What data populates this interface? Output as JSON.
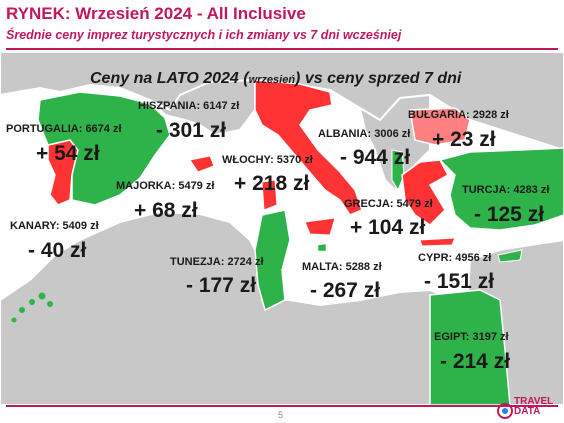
{
  "header": {
    "title": "RYNEK: Wrzesień 2024 - All Inclusive",
    "subtitle": "Średnie ceny imprez turystycznych i ich zmiany vs 7 dni wcześniej"
  },
  "map": {
    "heading_part1": "Ceny na LATO 2024 (",
    "heading_small": "wrzesień",
    "heading_part2": ") vs ceny sprzed 7 dni",
    "colors": {
      "increase": "#ff3333",
      "decrease": "#2db34a",
      "land": "#c8c8c8",
      "sea": "#ffffff"
    },
    "destinations": [
      {
        "id": "portugalia",
        "label": "PORTUGALIA: 6674 zł",
        "change": "+ 54 zł"
      },
      {
        "id": "hiszpania",
        "label": "HISZPANIA: 6147 zł",
        "change": "- 301 zł"
      },
      {
        "id": "majorka",
        "label": "MAJORKA: 5479 zł",
        "change": "+ 68 zł"
      },
      {
        "id": "kanary",
        "label": "KANARY: 5409 zł",
        "change": "- 40 zł"
      },
      {
        "id": "wlochy",
        "label": "WŁOCHY: 5370 zł",
        "change": "+ 218 zł"
      },
      {
        "id": "albania",
        "label": "ALBANIA: 3006 zł",
        "change": "- 944 zł"
      },
      {
        "id": "bulgaria",
        "label": "BUŁGARIA: 2928 zł",
        "change": "+ 23 zł"
      },
      {
        "id": "turcja",
        "label": "TURCJA: 4283 zł",
        "change": "- 125 zł"
      },
      {
        "id": "grecja",
        "label": "GRECJA: 5479 zł",
        "change": "+ 104 zł"
      },
      {
        "id": "tunezja",
        "label": "TUNEZJA: 2724 zł",
        "change": "- 177 zł"
      },
      {
        "id": "malta",
        "label": "MALTA: 5288 zł",
        "change": "- 267 zł"
      },
      {
        "id": "cypr",
        "label": "CYPR: 4956 zł",
        "change": "- 151 zł"
      },
      {
        "id": "egipt",
        "label": "EGIPT: 3197 zł",
        "change": "- 214 zł"
      }
    ]
  },
  "footer": {
    "page_number": "5",
    "logo_line1": "TRAVEL",
    "logo_line2": "DATA"
  }
}
